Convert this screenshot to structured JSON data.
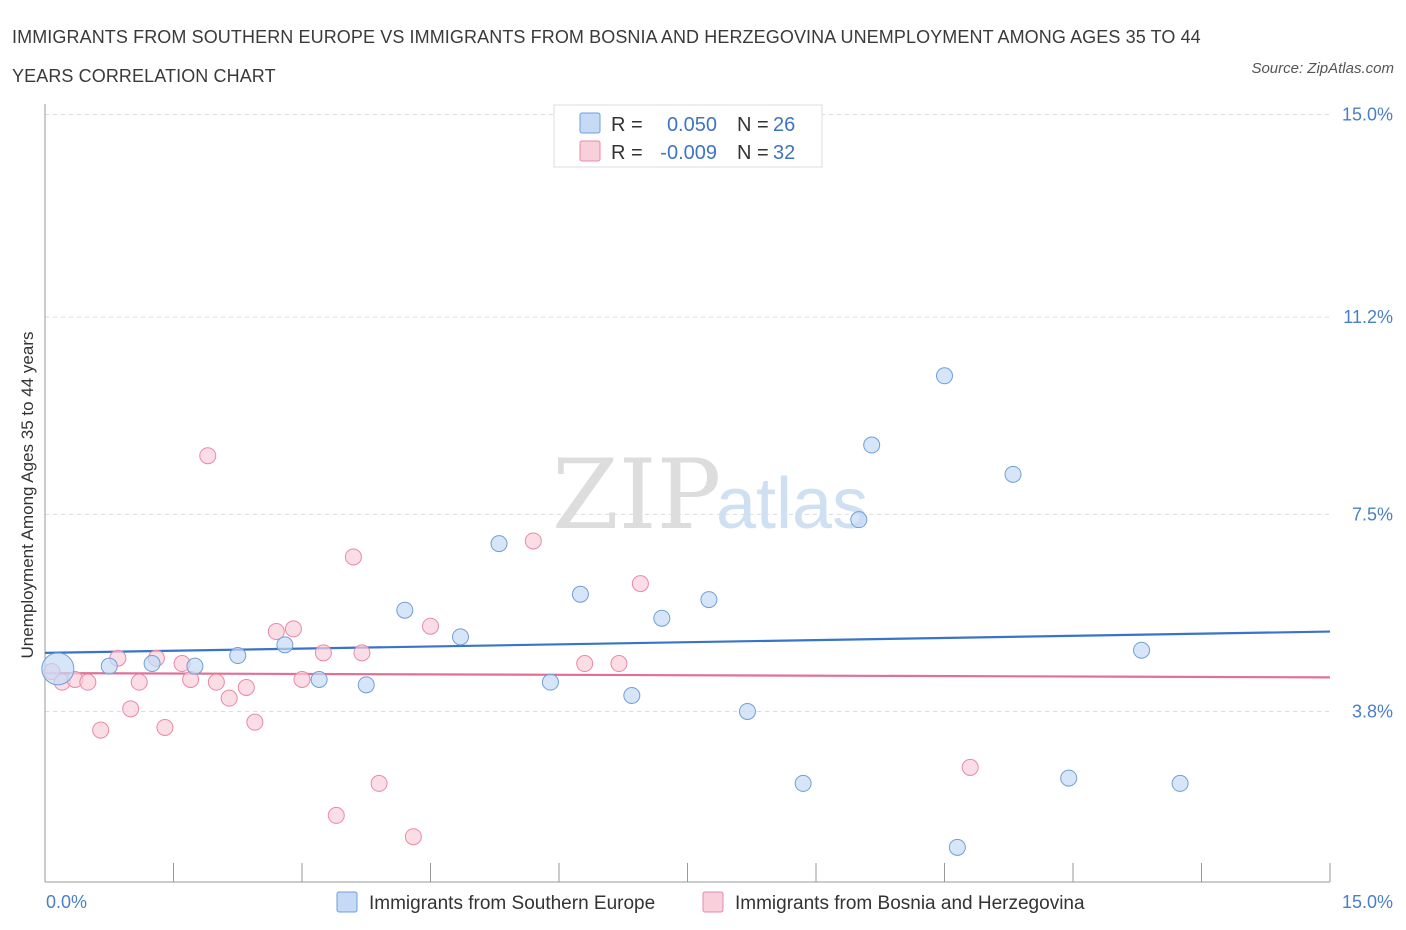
{
  "title": "IMMIGRANTS FROM SOUTHERN EUROPE VS IMMIGRANTS FROM BOSNIA AND HERZEGOVINA UNEMPLOYMENT AMONG AGES 35 TO 44 YEARS CORRELATION CHART",
  "source": "Source: ZipAtlas.com",
  "watermark": {
    "zip": "ZIP",
    "atlas": "atlas"
  },
  "legend": {
    "r_label": "R =",
    "n_label": "N =",
    "series": [
      {
        "r": "0.050",
        "n": "26"
      },
      {
        "r": "-0.009",
        "n": "32"
      }
    ]
  },
  "colors": {
    "blue_fill": "#c5daf5",
    "blue_stroke": "#6f9fd8",
    "blue_line": "#3a74c8",
    "pink_fill": "#f9cfdc",
    "pink_stroke": "#e889a8",
    "pink_line": "#e07098",
    "grid": "#dcdcdc",
    "axis": "#999999"
  },
  "chart_data": {
    "type": "scatter",
    "title": "IMMIGRANTS FROM SOUTHERN EUROPE VS IMMIGRANTS FROM BOSNIA AND HERZEGOVINA UNEMPLOYMENT AMONG AGES 35 TO 44 YEARS CORRELATION CHART",
    "xlabel": "",
    "ylabel": "Unemployment Among Ages 35 to 44 years",
    "xlim": [
      0,
      15
    ],
    "ylim": [
      0.6,
      15.2
    ],
    "x_tick_labels": [
      "0.0%",
      "15.0%"
    ],
    "y_ticks": [
      3.8,
      7.5,
      11.2,
      15.0
    ],
    "y_tick_labels": [
      "3.8%",
      "7.5%",
      "11.2%",
      "15.0%"
    ],
    "grid": true,
    "legend_position": "top-center",
    "series": [
      {
        "name": "Immigrants from Southern Europe",
        "r": 0.05,
        "n": 26,
        "trend": {
          "x": [
            0,
            15
          ],
          "y": [
            4.9,
            5.3
          ]
        },
        "points": [
          {
            "x": 0.15,
            "y": 4.6,
            "big": true
          },
          {
            "x": 0.75,
            "y": 4.65
          },
          {
            "x": 1.25,
            "y": 4.7
          },
          {
            "x": 1.75,
            "y": 4.65
          },
          {
            "x": 2.25,
            "y": 4.85
          },
          {
            "x": 2.8,
            "y": 5.05
          },
          {
            "x": 3.2,
            "y": 4.4
          },
          {
            "x": 3.75,
            "y": 4.3
          },
          {
            "x": 4.2,
            "y": 5.7
          },
          {
            "x": 4.85,
            "y": 5.2
          },
          {
            "x": 5.3,
            "y": 6.95
          },
          {
            "x": 5.9,
            "y": 4.35
          },
          {
            "x": 6.25,
            "y": 6.0
          },
          {
            "x": 6.85,
            "y": 4.1
          },
          {
            "x": 7.2,
            "y": 5.55
          },
          {
            "x": 7.75,
            "y": 5.9
          },
          {
            "x": 8.2,
            "y": 3.8
          },
          {
            "x": 8.85,
            "y": 2.45
          },
          {
            "x": 9.5,
            "y": 7.4
          },
          {
            "x": 9.65,
            "y": 8.8
          },
          {
            "x": 10.5,
            "y": 10.1
          },
          {
            "x": 10.65,
            "y": 1.25
          },
          {
            "x": 11.3,
            "y": 8.25
          },
          {
            "x": 11.95,
            "y": 2.55
          },
          {
            "x": 12.8,
            "y": 4.95
          },
          {
            "x": 13.25,
            "y": 2.45
          }
        ]
      },
      {
        "name": "Immigrants from Bosnia and Herzegovina",
        "r": -0.009,
        "n": 32,
        "trend": {
          "x": [
            0,
            15
          ],
          "y": [
            4.52,
            4.44
          ]
        },
        "points": [
          {
            "x": 0.08,
            "y": 4.55
          },
          {
            "x": 0.2,
            "y": 4.35
          },
          {
            "x": 0.35,
            "y": 4.4
          },
          {
            "x": 0.5,
            "y": 4.35
          },
          {
            "x": 0.65,
            "y": 3.45
          },
          {
            "x": 0.85,
            "y": 4.8
          },
          {
            "x": 1.0,
            "y": 3.85
          },
          {
            "x": 1.1,
            "y": 4.35
          },
          {
            "x": 1.3,
            "y": 4.8
          },
          {
            "x": 1.4,
            "y": 3.5
          },
          {
            "x": 1.6,
            "y": 4.7
          },
          {
            "x": 1.7,
            "y": 4.4
          },
          {
            "x": 1.9,
            "y": 8.6
          },
          {
            "x": 2.0,
            "y": 4.35
          },
          {
            "x": 2.15,
            "y": 4.05
          },
          {
            "x": 2.35,
            "y": 4.25
          },
          {
            "x": 2.45,
            "y": 3.6
          },
          {
            "x": 2.7,
            "y": 5.3
          },
          {
            "x": 2.9,
            "y": 5.35
          },
          {
            "x": 3.0,
            "y": 4.4
          },
          {
            "x": 3.25,
            "y": 4.9
          },
          {
            "x": 3.4,
            "y": 1.85
          },
          {
            "x": 3.6,
            "y": 6.7
          },
          {
            "x": 3.7,
            "y": 4.9
          },
          {
            "x": 3.9,
            "y": 2.45
          },
          {
            "x": 4.3,
            "y": 1.45
          },
          {
            "x": 4.5,
            "y": 5.4
          },
          {
            "x": 5.7,
            "y": 7.0
          },
          {
            "x": 6.3,
            "y": 4.7
          },
          {
            "x": 6.7,
            "y": 4.7
          },
          {
            "x": 6.95,
            "y": 6.2
          },
          {
            "x": 10.8,
            "y": 2.75
          }
        ]
      }
    ]
  }
}
